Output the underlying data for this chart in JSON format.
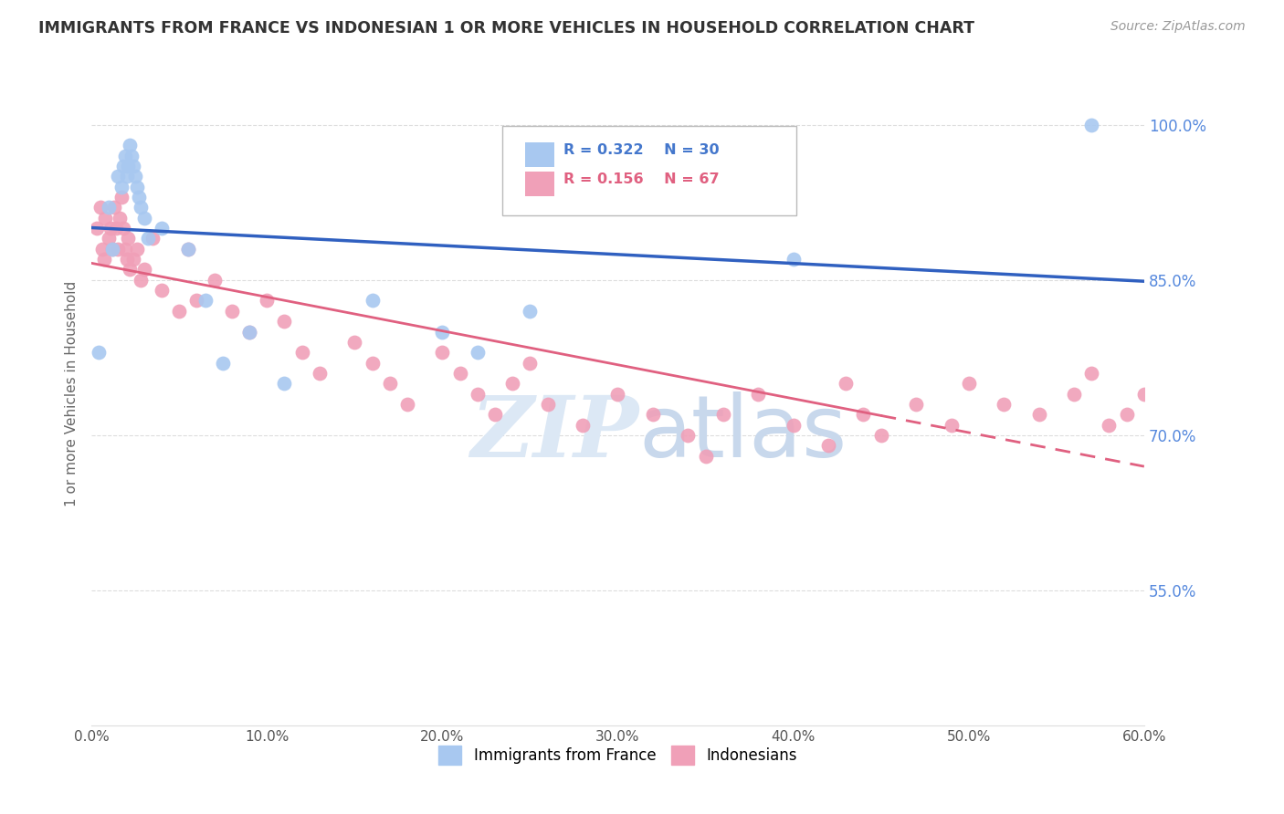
{
  "title": "IMMIGRANTS FROM FRANCE VS INDONESIAN 1 OR MORE VEHICLES IN HOUSEHOLD CORRELATION CHART",
  "source": "Source: ZipAtlas.com",
  "ylabel": "1 or more Vehicles in Household",
  "xmin": 0.0,
  "xmax": 60.0,
  "ymin": 42.0,
  "ymax": 106.0,
  "yticks": [
    55.0,
    70.0,
    85.0,
    100.0
  ],
  "xticks": [
    0.0,
    10.0,
    20.0,
    30.0,
    40.0,
    50.0,
    60.0
  ],
  "legend_r1": "R = 0.322",
  "legend_n1": "N = 30",
  "legend_r2": "R = 0.156",
  "legend_n2": "N = 67",
  "blue_color": "#A8C8F0",
  "pink_color": "#F0A0B8",
  "blue_line_color": "#3060C0",
  "pink_line_color": "#E06080",
  "watermark_zip": "ZIP",
  "watermark_atlas": "atlas",
  "blue_x": [
    0.4,
    1.0,
    1.2,
    1.5,
    1.7,
    1.8,
    1.9,
    2.0,
    2.1,
    2.2,
    2.3,
    2.4,
    2.5,
    2.6,
    2.7,
    2.8,
    3.0,
    3.2,
    4.0,
    5.5,
    6.5,
    7.5,
    9.0,
    11.0,
    16.0,
    20.0,
    22.0,
    25.0,
    40.0,
    57.0
  ],
  "blue_y": [
    78.0,
    92.0,
    88.0,
    95.0,
    94.0,
    96.0,
    97.0,
    95.0,
    96.0,
    98.0,
    97.0,
    96.0,
    95.0,
    94.0,
    93.0,
    92.0,
    91.0,
    89.0,
    90.0,
    88.0,
    83.0,
    77.0,
    80.0,
    75.0,
    83.0,
    80.0,
    78.0,
    82.0,
    87.0,
    100.0
  ],
  "pink_x": [
    0.3,
    0.5,
    0.6,
    0.7,
    0.8,
    1.0,
    1.1,
    1.2,
    1.3,
    1.4,
    1.5,
    1.6,
    1.7,
    1.8,
    1.9,
    2.0,
    2.1,
    2.2,
    2.4,
    2.6,
    2.8,
    3.0,
    3.5,
    4.0,
    5.0,
    5.5,
    6.0,
    7.0,
    8.0,
    9.0,
    10.0,
    11.0,
    12.0,
    13.0,
    15.0,
    16.0,
    17.0,
    18.0,
    20.0,
    21.0,
    22.0,
    23.0,
    24.0,
    25.0,
    26.0,
    28.0,
    30.0,
    32.0,
    34.0,
    35.0,
    36.0,
    38.0,
    40.0,
    42.0,
    43.0,
    44.0,
    45.0,
    47.0,
    49.0,
    50.0,
    52.0,
    54.0,
    56.0,
    57.0,
    58.0,
    59.0,
    60.0
  ],
  "pink_y": [
    90.0,
    92.0,
    88.0,
    87.0,
    91.0,
    89.0,
    90.0,
    88.0,
    92.0,
    90.0,
    88.0,
    91.0,
    93.0,
    90.0,
    88.0,
    87.0,
    89.0,
    86.0,
    87.0,
    88.0,
    85.0,
    86.0,
    89.0,
    84.0,
    82.0,
    88.0,
    83.0,
    85.0,
    82.0,
    80.0,
    83.0,
    81.0,
    78.0,
    76.0,
    79.0,
    77.0,
    75.0,
    73.0,
    78.0,
    76.0,
    74.0,
    72.0,
    75.0,
    77.0,
    73.0,
    71.0,
    74.0,
    72.0,
    70.0,
    68.0,
    72.0,
    74.0,
    71.0,
    69.0,
    75.0,
    72.0,
    70.0,
    73.0,
    71.0,
    75.0,
    73.0,
    72.0,
    74.0,
    76.0,
    71.0,
    72.0,
    74.0
  ]
}
